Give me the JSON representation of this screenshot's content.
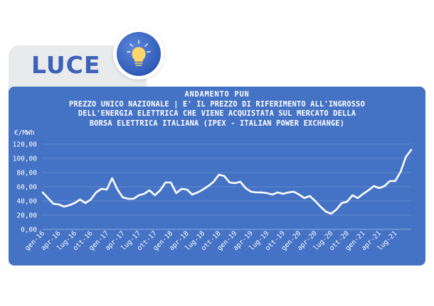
{
  "header": {
    "label": "LUCE",
    "icon": "lightbulb-icon"
  },
  "colors": {
    "panel": "#4472c4",
    "line": "#ffffff",
    "label_text": "#3c63b8",
    "tab": "#e9eaec"
  },
  "chart_data": {
    "type": "line",
    "title_lines": [
      "ANDAMENTO PUN",
      "PREZZO UNICO NAZIONALE |  E' IL PREZZO DI RIFERIMENTO ALL'INGROSSO",
      "DELL'ENERGIA ELETTRICA CHE VIENE ACQUISTATA SUL MERCATO DELLA",
      "BORSA ELETTRICA ITALIANA (IPEX - ITALIAN POWER EXCHANGE)"
    ],
    "ylabel": "€/MWh",
    "ylim": [
      0,
      120
    ],
    "yticks": [
      "0,00",
      "20,00",
      "40,00",
      "60,00",
      "80,00",
      "100,00",
      "120,00"
    ],
    "xticks": [
      "gen-16",
      "apr-16",
      "lug-16",
      "ott-16",
      "gen-17",
      "apr-17",
      "lug-17",
      "ott-17",
      "gen-18",
      "apr-18",
      "lug-18",
      "ott-18",
      "gen-19",
      "apr-19",
      "lug-19",
      "ott-19",
      "gen-20",
      "apr-20",
      "lug-20",
      "ott-20",
      "gen-21",
      "apr-21",
      "lug-21"
    ],
    "grid": true,
    "legend": "none",
    "series": [
      {
        "values": [
          52,
          44,
          36,
          35,
          32,
          34,
          37,
          42,
          37,
          42,
          52,
          57,
          56,
          72,
          56,
          45,
          43,
          43,
          48,
          50,
          55,
          48,
          55,
          66,
          66,
          51,
          57,
          56,
          49,
          52,
          56,
          61,
          67,
          77,
          75,
          66,
          65,
          67,
          58,
          53,
          52,
          52,
          51,
          49,
          52,
          50,
          52,
          53,
          49,
          44,
          47,
          40,
          32,
          25,
          22,
          28,
          37,
          39,
          48,
          44,
          50,
          55,
          61,
          58,
          61,
          68,
          68,
          81,
          102,
          112
        ]
      }
    ]
  }
}
